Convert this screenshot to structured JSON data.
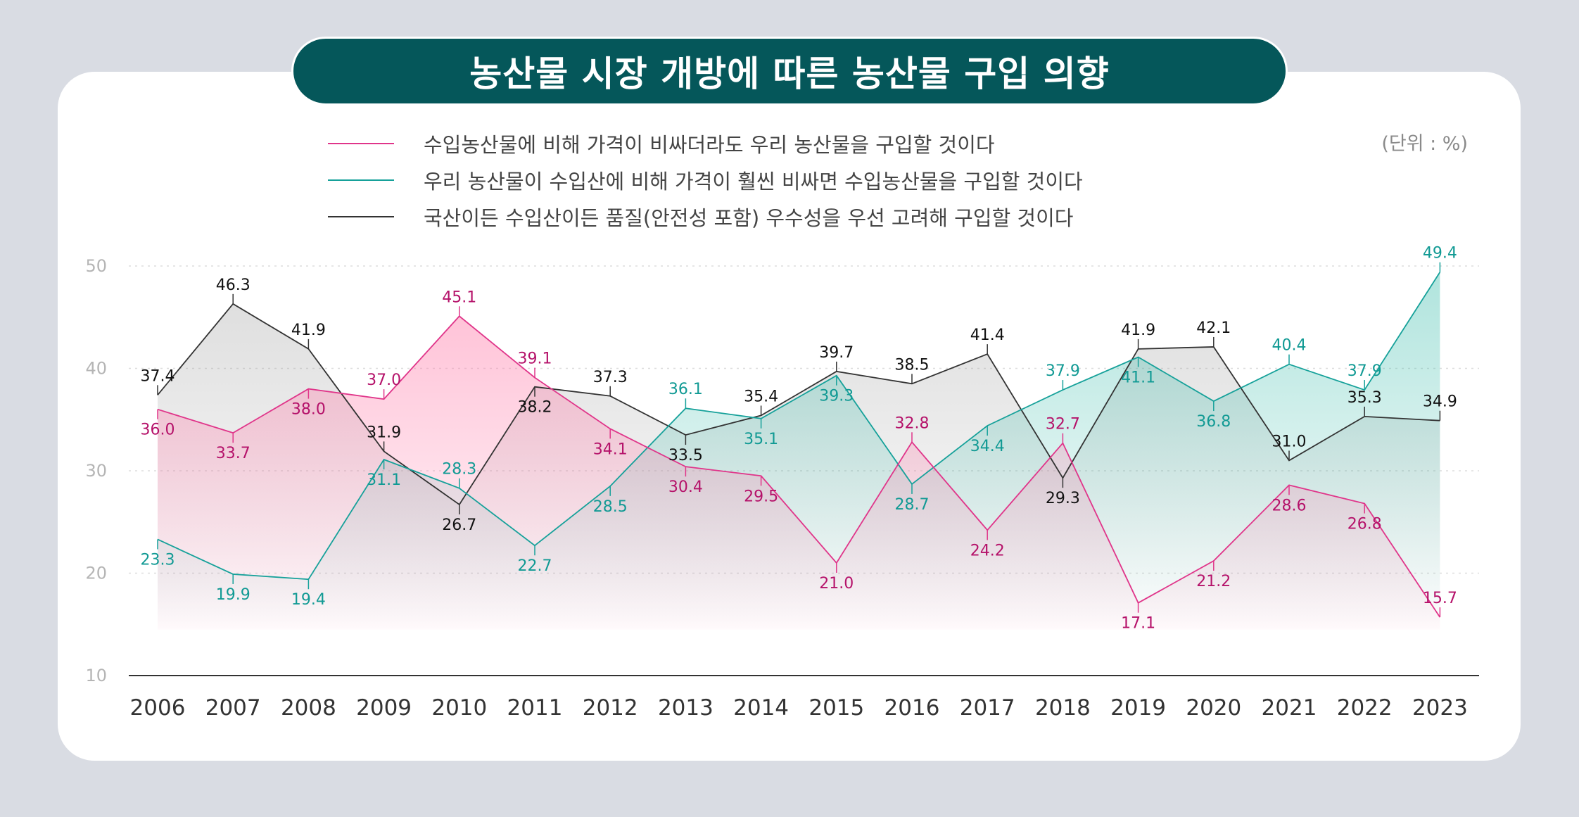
{
  "title": "농산물 시장 개방에 따른 농산물 구입 의향",
  "unit": "(단위 : %)",
  "colors": {
    "background": "#d9dce3",
    "card": "#ffffff",
    "title_bg": "#05575a",
    "series_pink_line": "#e0358a",
    "series_pink_label": "#b5126a",
    "series_teal_line": "#16a19a",
    "series_teal_label": "#119a94",
    "series_black_line": "#333333",
    "series_black_label": "#111111",
    "grid": "#dddddd",
    "axis": "#333333"
  },
  "legend": [
    {
      "label": "수입농산물에 비해 가격이 비싸더라도 우리 농산물을 구입할 것이다",
      "color": "#e0358a"
    },
    {
      "label": "우리 농산물이 수입산에 비해 가격이 훨씬 비싸면 수입농산물을 구입할 것이다",
      "color": "#16a19a"
    },
    {
      "label": "국산이든 수입산이든 품질(안전성 포함) 우수성을 우선 고려해 구입할 것이다",
      "color": "#333333"
    }
  ],
  "chart_data": {
    "type": "line",
    "title": "농산물 시장 개방에 따른 농산물 구입 의향",
    "xlabel": "",
    "ylabel": "",
    "ylim": [
      10,
      50
    ],
    "yticks": [
      10,
      20,
      30,
      40,
      50
    ],
    "grid": true,
    "categories": [
      "2006",
      "2007",
      "2008",
      "2009",
      "2010",
      "2011",
      "2012",
      "2013",
      "2014",
      "2015",
      "2016",
      "2017",
      "2018",
      "2019",
      "2020",
      "2021",
      "2022",
      "2023"
    ],
    "series": [
      {
        "name": "수입농산물에 비해 가격이 비싸더라도 우리 농산물을 구입할 것이다",
        "key": "pink",
        "values": [
          36.0,
          33.7,
          38.0,
          37.0,
          45.1,
          39.1,
          34.1,
          30.4,
          29.5,
          21.0,
          32.8,
          24.2,
          32.7,
          17.1,
          21.2,
          28.6,
          26.8,
          15.7
        ],
        "labels": [
          "36.0",
          "33.7",
          "38.0",
          "37.0",
          "45.1",
          "39.1",
          "34.1",
          "30.4",
          "29.5",
          "21.0",
          "32.8",
          "24.2",
          "32.7",
          "17.1",
          "21.2",
          "28.6",
          "26.8",
          "15.7"
        ],
        "label_pos": [
          "below",
          "below",
          "below",
          "above",
          "above",
          "above",
          "below",
          "below",
          "below",
          "below",
          "above",
          "below",
          "above",
          "below",
          "below",
          "below",
          "below",
          "above"
        ]
      },
      {
        "name": "우리 농산물이 수입산에 비해 가격이 훨씬 비싸면 수입농산물을 구입할 것이다",
        "key": "teal",
        "values": [
          23.3,
          19.9,
          19.4,
          31.1,
          28.3,
          22.7,
          28.5,
          36.1,
          35.1,
          39.3,
          28.7,
          34.4,
          37.9,
          41.1,
          36.8,
          40.4,
          37.9,
          49.4
        ],
        "labels": [
          "23.3",
          "19.9",
          "19.4",
          "31.1",
          "28.3",
          "22.7",
          "28.5",
          "36.1",
          "35.1",
          "39.3",
          "28.7",
          "34.4",
          "37.9",
          "41.1",
          "36.8",
          "40.4",
          "37.9",
          "49.4"
        ],
        "label_pos": [
          "below",
          "below",
          "below",
          "below",
          "above",
          "below",
          "below",
          "above",
          "below",
          "below",
          "below",
          "below",
          "above",
          "below",
          "below",
          "above",
          "above",
          "above"
        ]
      },
      {
        "name": "국산이든 수입산이든 품질(안전성 포함) 우수성을 우선 고려해 구입할 것이다",
        "key": "black",
        "values": [
          37.4,
          46.3,
          41.9,
          31.9,
          26.7,
          38.2,
          37.3,
          33.5,
          35.4,
          39.7,
          38.5,
          41.4,
          29.3,
          41.9,
          42.1,
          31.0,
          35.3,
          34.9
        ],
        "labels": [
          "37.4",
          "46.3",
          "41.9",
          "31.9",
          "26.7",
          "38.2",
          "37.3",
          "33.5",
          "35.4",
          "39.7",
          "38.5",
          "41.4",
          "29.3",
          "41.9",
          "42.1",
          "31.0",
          "35.3",
          "34.9"
        ],
        "label_pos": [
          "above",
          "above",
          "above",
          "above",
          "below",
          "below",
          "above",
          "below",
          "above",
          "above",
          "above",
          "above",
          "below",
          "above",
          "above",
          "above",
          "above",
          "above"
        ]
      }
    ]
  }
}
